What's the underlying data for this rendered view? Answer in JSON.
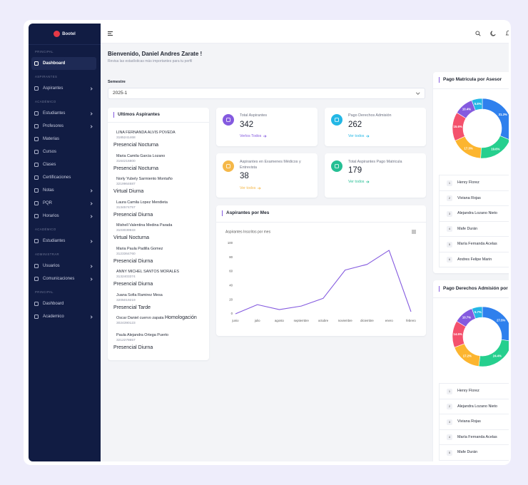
{
  "sidebar": {
    "brand": "Bootel",
    "sections": [
      {
        "title": "PRINCIPAL",
        "items": [
          "Dashboard"
        ]
      },
      {
        "title": "ASPIRANTES",
        "items": [
          "Aspirantes"
        ]
      },
      {
        "title": "ACADÉMICO",
        "items": [
          "Estudiantes",
          "Profesores",
          "Materias",
          "Cursos",
          "Clases",
          "Certificaciones",
          "Notas",
          "PQR",
          "Horarios"
        ]
      },
      {
        "title": "ACADÉMICO",
        "items": [
          "Estudiantes"
        ]
      },
      {
        "title": "ADMINISTRAR",
        "items": [
          "Usuarios",
          "Comunicaciones"
        ]
      },
      {
        "title": "PRINCIPAL",
        "items": [
          "Dashboard",
          "Academico"
        ]
      }
    ]
  },
  "welcome": {
    "title": "Bienvenido, Daniel Andres Zarate !",
    "subtitle": "Revisa las estadísticas más importantes para tu perfil"
  },
  "semester": {
    "label": "Semestre",
    "value": "2025-1"
  },
  "aspirants": {
    "title": "Ultimos Aspirantes",
    "items": [
      {
        "name": "LINA FERNANDA ALVIS POVEDA",
        "phone": "3185241468",
        "modality": "Presencial Nocturna"
      },
      {
        "name": "Maria Camila Garcia Lozano",
        "phone": "3164216800",
        "modality": "Presencial Nocturna"
      },
      {
        "name": "Norly Yubely Sarmiento Montaño",
        "phone": "3219964687",
        "modality": "Virtual Diurna"
      },
      {
        "name": "Laura Camila Lopez Mendieta",
        "phone": "3134574757",
        "modality": "Presencial Diurna"
      },
      {
        "name": "Mishell Valentina Medina Parada",
        "phone": "3103039933",
        "modality": "Virtual Nocturna"
      },
      {
        "name": "Maria Paula Padilla Gomez",
        "phone": "3123364760",
        "modality": "Presencial Diurna"
      },
      {
        "name": "ANNY MICHEL SANTOS MORALES",
        "phone": "3132403374",
        "modality": "Presencial Diurna"
      },
      {
        "name": "Juana Sofia Ramirez Mesa",
        "phone": "3205019219",
        "modality": "Presencial Tarde"
      },
      {
        "name": "Oscar Daniel cuervo zapata",
        "phone": "3024390123",
        "modality": "Homologación"
      },
      {
        "name": "Paula Alejandra Ortega Puerto",
        "phone": "3212278657",
        "modality": "Presencial Diurna"
      }
    ]
  },
  "stats": [
    {
      "label": "Total Aspirantes",
      "value": 342,
      "link": "Verlos Todos",
      "color": "#845adf"
    },
    {
      "label": "Pago Derechos Admisión",
      "value": 262,
      "link": "Ver todos",
      "color": "#23b7e5"
    },
    {
      "label": "Aspirantes en Examenes Médicos y Entrevista",
      "value": 38,
      "link": "Ver todos",
      "color": "#f5b849"
    },
    {
      "label": "Total Aspirantes Pago Matricula",
      "value": 179,
      "link": "Ver todos",
      "color": "#26bf94"
    }
  ],
  "chart_card": {
    "title": "Aspirantes por Mes"
  },
  "chart_data": [
    {
      "type": "line",
      "title": "Aspirantes Inscritos por mes",
      "categories": [
        "junio",
        "julio",
        "agosto",
        "septiembre",
        "octubre",
        "noviembre",
        "diciembre",
        "enero",
        "febrero"
      ],
      "values": [
        0,
        13,
        6,
        11,
        22,
        62,
        70,
        90,
        3
      ],
      "color": "#845adf",
      "ylim": [
        0,
        100
      ],
      "yticks": [
        0,
        20,
        40,
        60,
        80,
        100
      ],
      "grid": false
    },
    {
      "type": "pie",
      "title": "Pago Matricula por Asesor",
      "values": [
        31.3,
        19.6,
        17.3,
        15.6,
        10.4,
        5.8
      ],
      "value_labels": [
        "31.3%",
        "19.6%",
        "17.3%",
        "15.6%",
        "10.4%",
        "5.8%"
      ],
      "colors": [
        "#2f80ed",
        "#26cf8e",
        "#fcb52f",
        "#f4516c",
        "#845adf",
        "#23b7e5"
      ],
      "donut": true
    },
    {
      "type": "pie",
      "title": "Pago Derechos Admisión por Asesor",
      "values": [
        27.5,
        24.4,
        17.2,
        14.5,
        10.7,
        5.7
      ],
      "value_labels": [
        "27.5%",
        "24.4%",
        "17.2%",
        "14.5%",
        "10.7%",
        "5.7%"
      ],
      "colors": [
        "#2f80ed",
        "#26cf8e",
        "#fcb52f",
        "#f4516c",
        "#845adf",
        "#23b7e5"
      ],
      "donut": true
    }
  ],
  "rankings": [
    [
      {
        "rank": 1,
        "name": "Henry Florez"
      },
      {
        "rank": 2,
        "name": "Viviana Rojas"
      },
      {
        "rank": 3,
        "name": "Alejandra Lozano Nieto"
      },
      {
        "rank": 4,
        "name": "Mafe Durán"
      },
      {
        "rank": 5,
        "name": "María Fernanda Acelas"
      },
      {
        "rank": 6,
        "name": "Andres Felipe Marin"
      }
    ],
    [
      {
        "rank": 1,
        "name": "Henry Florez"
      },
      {
        "rank": 2,
        "name": "Alejandra Lozano Nieto"
      },
      {
        "rank": 3,
        "name": "Viviana Rojas"
      },
      {
        "rank": 4,
        "name": "María Fernanda Acelas"
      },
      {
        "rank": 5,
        "name": "Mafe Durán"
      }
    ]
  ]
}
